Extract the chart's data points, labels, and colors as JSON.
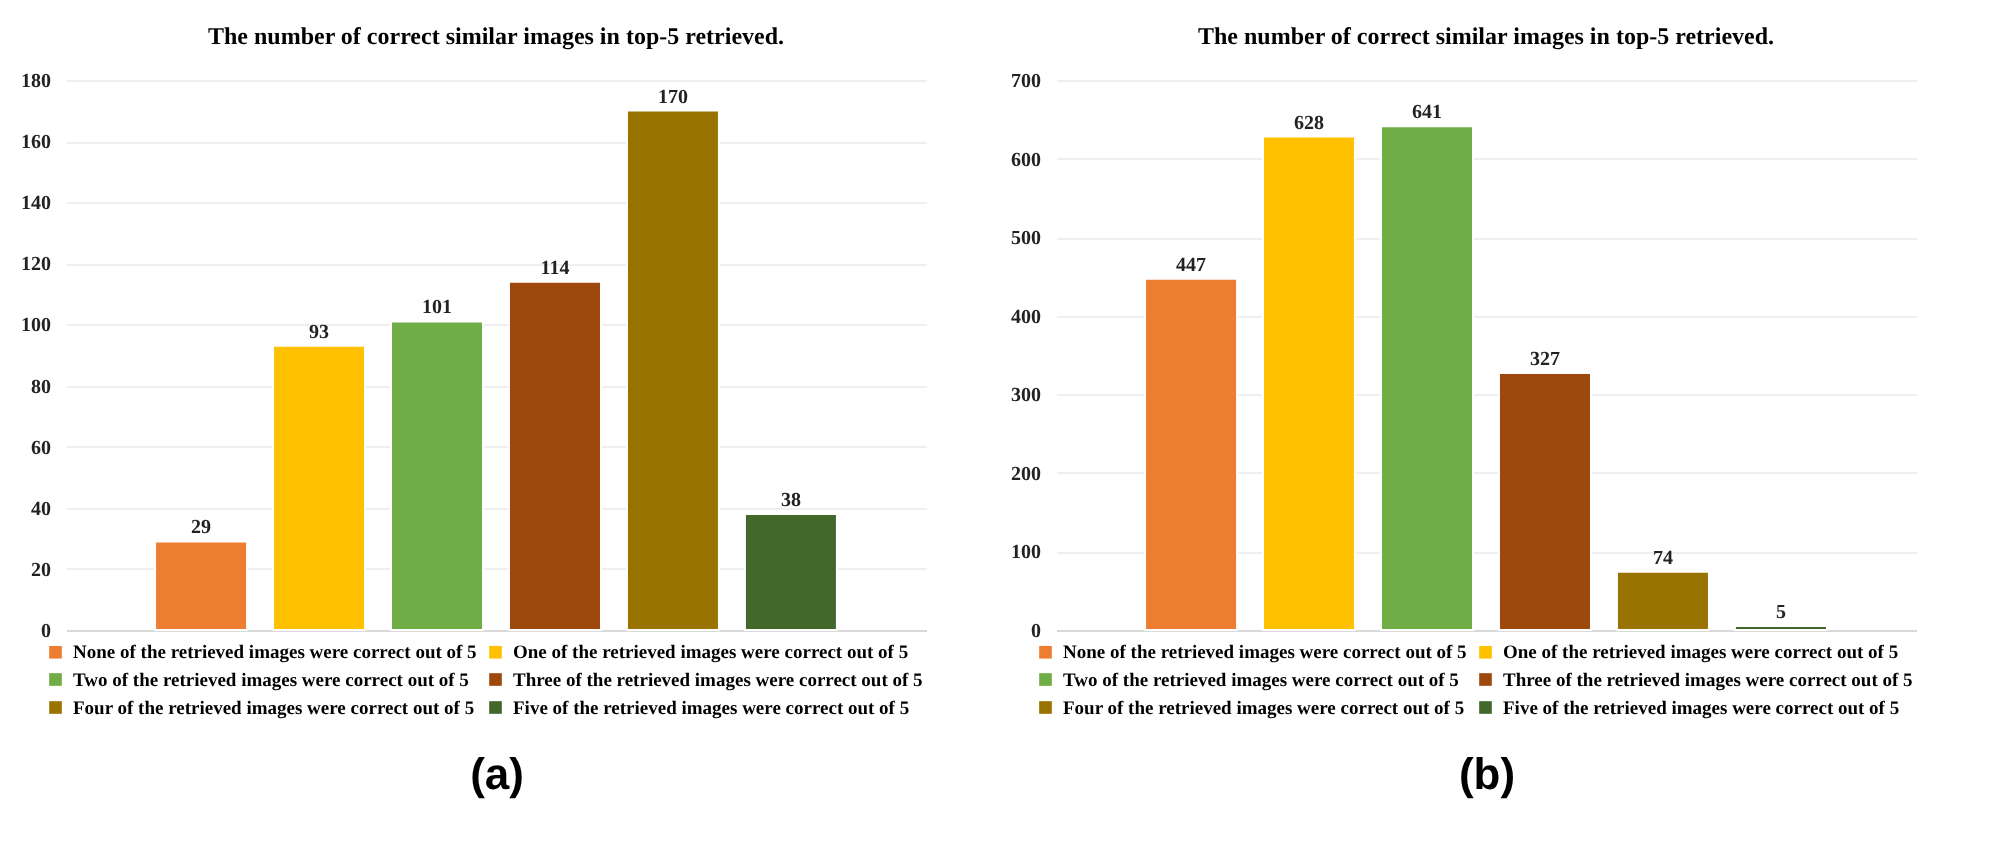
{
  "chart_data": [
    {
      "type": "bar",
      "title": "The number of correct similar images in top-5 retrieved.",
      "xlabel": "(a)",
      "categories": [
        null
      ],
      "series": [
        {
          "name": "None of the retrieved images were correct out of 5",
          "color": "#ed7d31",
          "values": [
            29
          ]
        },
        {
          "name": "One of the retrieved images were correct out of 5",
          "color": "#ffc000",
          "values": [
            93
          ]
        },
        {
          "name": "Two of the retrieved images were correct out of 5",
          "color": "#70ad47",
          "values": [
            101
          ]
        },
        {
          "name": "Three of the retrieved images were correct out of 5",
          "color": "#9e480e",
          "values": [
            114
          ]
        },
        {
          "name": "Four of the retrieved images were correct out of 5",
          "color": "#997300",
          "values": [
            170
          ]
        },
        {
          "name": "Five of the retrieved images were correct out of 5",
          "color": "#43682b",
          "values": [
            38
          ]
        }
      ],
      "ylim": [
        0,
        180
      ],
      "yticks": [
        0,
        20,
        40,
        60,
        80,
        100,
        120,
        140,
        160,
        180
      ],
      "grid": "y",
      "legend": "bottom",
      "data_labels": true
    },
    {
      "type": "bar",
      "title": "The number of correct similar images in top-5 retrieved.",
      "xlabel": "(b)",
      "categories": [
        null
      ],
      "series": [
        {
          "name": "None of the retrieved images were correct out of 5",
          "color": "#ed7d31",
          "values": [
            447
          ]
        },
        {
          "name": "One of the retrieved images were correct out of 5",
          "color": "#ffc000",
          "values": [
            628
          ]
        },
        {
          "name": "Two of the retrieved images were correct out of 5",
          "color": "#70ad47",
          "values": [
            641
          ]
        },
        {
          "name": "Three of the retrieved images were correct out of 5",
          "color": "#9e480e",
          "values": [
            327
          ]
        },
        {
          "name": "Four of the retrieved images were correct out of 5",
          "color": "#997300",
          "values": [
            74
          ]
        },
        {
          "name": "Five of the retrieved images were correct out of 5",
          "color": "#43682b",
          "values": [
            5
          ]
        }
      ],
      "ylim": [
        0,
        700
      ],
      "yticks": [
        0,
        100,
        200,
        300,
        400,
        500,
        600,
        700
      ],
      "grid": "y",
      "legend": "bottom",
      "data_labels": true
    }
  ]
}
